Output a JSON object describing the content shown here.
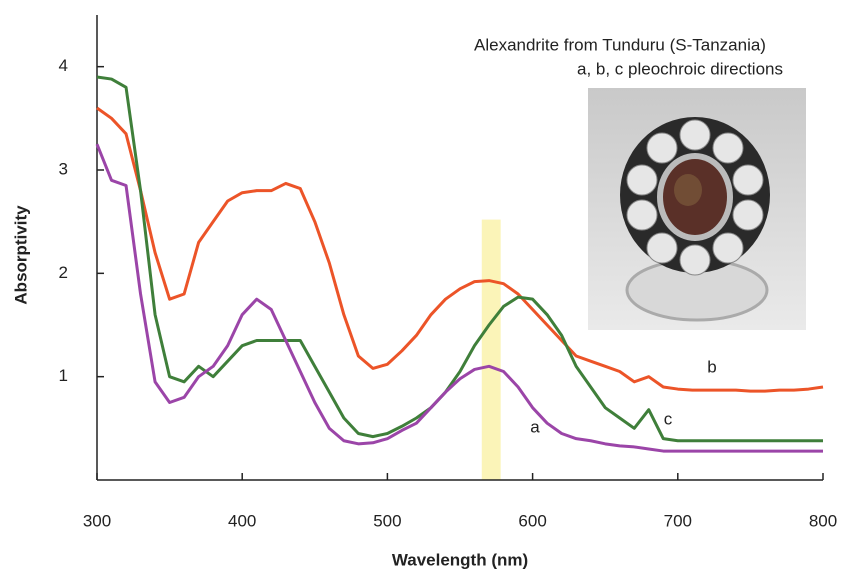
{
  "chart_data": {
    "type": "line",
    "title": "Alexandrite from Tunduru (S-Tanzania)",
    "subtitle": "a, b, c pleochroic directions",
    "x_label": "Wavelength (nm)",
    "y_label": "Absorptivity",
    "x": [
      300,
      310,
      320,
      330,
      340,
      350,
      360,
      370,
      380,
      390,
      400,
      410,
      420,
      430,
      440,
      450,
      460,
      470,
      480,
      490,
      500,
      510,
      520,
      530,
      540,
      550,
      560,
      570,
      580,
      590,
      600,
      610,
      620,
      630,
      640,
      650,
      660,
      670,
      680,
      690,
      700,
      710,
      720,
      730,
      740,
      750,
      760,
      770,
      780,
      790,
      800
    ],
    "series": [
      {
        "name": "b",
        "color": "#ec5428",
        "values": [
          3.6,
          3.5,
          3.35,
          2.8,
          2.2,
          1.75,
          1.8,
          2.3,
          2.5,
          2.7,
          2.78,
          2.8,
          2.8,
          2.87,
          2.82,
          2.5,
          2.1,
          1.6,
          1.2,
          1.08,
          1.12,
          1.25,
          1.4,
          1.6,
          1.75,
          1.85,
          1.92,
          1.93,
          1.9,
          1.8,
          1.65,
          1.5,
          1.35,
          1.2,
          1.15,
          1.1,
          1.05,
          0.95,
          1.0,
          0.9,
          0.88,
          0.87,
          0.87,
          0.87,
          0.87,
          0.86,
          0.86,
          0.87,
          0.87,
          0.88,
          0.9
        ]
      },
      {
        "name": "c",
        "color": "#3f7f3a",
        "values": [
          3.9,
          3.88,
          3.8,
          2.8,
          1.6,
          1.0,
          0.95,
          1.1,
          1.0,
          1.15,
          1.3,
          1.35,
          1.35,
          1.35,
          1.35,
          1.1,
          0.85,
          0.6,
          0.45,
          0.42,
          0.45,
          0.52,
          0.6,
          0.7,
          0.85,
          1.05,
          1.3,
          1.5,
          1.68,
          1.77,
          1.75,
          1.6,
          1.4,
          1.1,
          0.9,
          0.7,
          0.6,
          0.5,
          0.68,
          0.4,
          0.38,
          0.38,
          0.38,
          0.38,
          0.38,
          0.38,
          0.38,
          0.38,
          0.38,
          0.38,
          0.38
        ]
      },
      {
        "name": "a",
        "color": "#9b45a8",
        "values": [
          3.25,
          2.9,
          2.85,
          1.8,
          0.95,
          0.75,
          0.8,
          1.0,
          1.1,
          1.3,
          1.6,
          1.75,
          1.65,
          1.35,
          1.05,
          0.75,
          0.5,
          0.38,
          0.35,
          0.36,
          0.4,
          0.48,
          0.55,
          0.7,
          0.85,
          0.98,
          1.07,
          1.1,
          1.05,
          0.9,
          0.7,
          0.55,
          0.45,
          0.4,
          0.38,
          0.35,
          0.33,
          0.32,
          0.3,
          0.28,
          0.28,
          0.28,
          0.28,
          0.28,
          0.28,
          0.28,
          0.28,
          0.28,
          0.28,
          0.28,
          0.28
        ]
      }
    ],
    "highlight_band": [
      565,
      578
    ],
    "xlim": [
      300,
      800
    ],
    "ylim": [
      0,
      4.5
    ],
    "xticks": [
      300,
      400,
      500,
      600,
      700,
      800
    ],
    "yticks": [
      1,
      2,
      3,
      4
    ]
  }
}
